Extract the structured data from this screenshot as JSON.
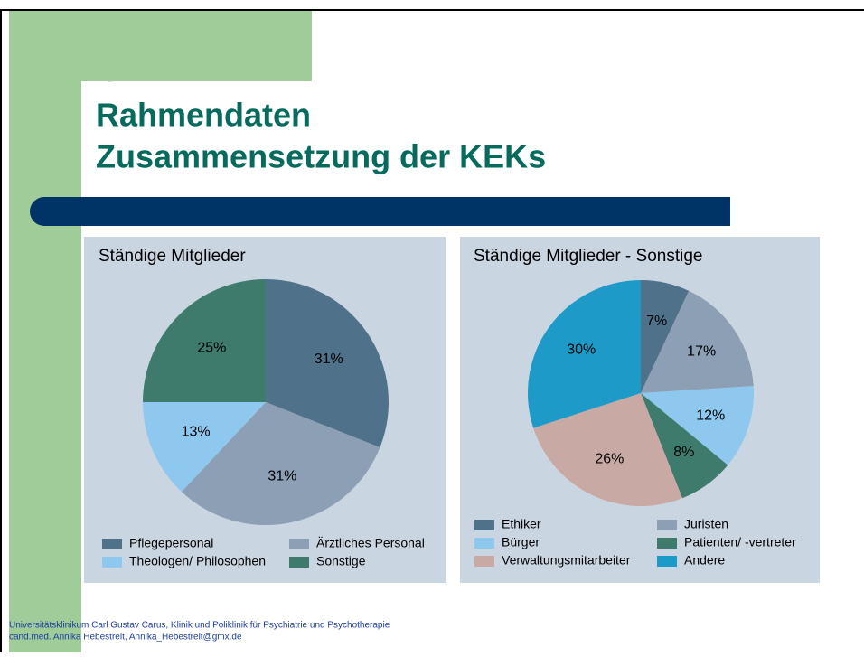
{
  "title": [
    "Rahmendaten",
    "Zusammensetzung der KEKs"
  ],
  "footer": [
    "Universitätsklinikum Carl Gustav Carus, Klinik und Poliklinik für Psychiatrie und Psychotherapie",
    "cand.med. Annika Hebestreit, Annika_Hebestreit@gmx.de"
  ],
  "chart_data": [
    {
      "type": "pie",
      "title": "Ständige Mitglieder",
      "categories": [
        "Pflegepersonal",
        "Ärztliches Personal",
        "Theologen/ Philosophen",
        "Sonstige"
      ],
      "values": [
        31,
        31,
        13,
        25
      ],
      "value_labels": [
        "31%",
        "31%",
        "13%",
        "25%"
      ],
      "colors": [
        "#50718a",
        "#8c9fb4",
        "#8fc8ee",
        "#3e7b6c"
      ]
    },
    {
      "type": "pie",
      "title": "Ständige Mitglieder - Sonstige",
      "categories": [
        "Ethiker",
        "Juristen",
        "Bürger",
        "Patienten/ -vertreter",
        "Verwaltungsmitarbeiter",
        "Andere"
      ],
      "values": [
        7,
        17,
        12,
        8,
        26,
        30
      ],
      "value_labels": [
        "7%",
        "17%",
        "12%",
        "8%",
        "26%",
        "30%"
      ],
      "colors": [
        "#50718a",
        "#8c9fb4",
        "#8fc8ee",
        "#3e7b6c",
        "#c8a9a3",
        "#1d9ac8"
      ]
    }
  ]
}
